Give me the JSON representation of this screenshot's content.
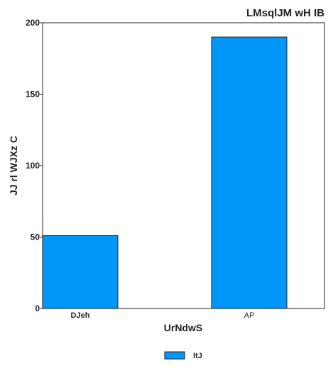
{
  "chart_data": {
    "type": "bar",
    "title": "LMsqlJM wH IB",
    "xlabel": "UrNdwS",
    "ylabel": "JJ rl WJXz C",
    "categories": [
      "DJeh",
      "AP"
    ],
    "category_bold": [
      true,
      false
    ],
    "series": [
      {
        "name": "ltJ",
        "values": [
          51,
          190
        ],
        "color": "#0096fa"
      }
    ],
    "ylim": [
      0,
      200
    ],
    "yticks": [
      0,
      50,
      100,
      150,
      200
    ],
    "grid": false,
    "legend_position": "bottom-center"
  }
}
